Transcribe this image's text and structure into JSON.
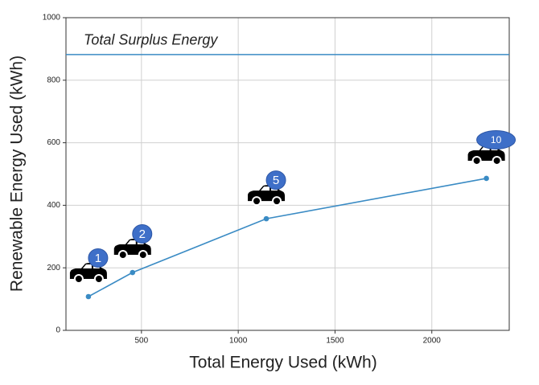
{
  "chart_data": {
    "type": "line",
    "xlabel": "Total Energy Used (kWh)",
    "ylabel": "Renewable Energy Used (kWh)",
    "x": [
      226,
      454,
      1145,
      2282
    ],
    "series": [
      {
        "color": "#3a8bc4",
        "values": [
          108,
          185,
          357,
          486
        ]
      }
    ],
    "point_labels": [
      "1",
      "2",
      "5",
      "10"
    ],
    "hline": {
      "value": 882,
      "label": "Total Surplus Energy",
      "color": "#3a8bc4"
    },
    "xlim": [
      110,
      2400
    ],
    "ylim": [
      0,
      1000
    ],
    "xticks": [
      500,
      1000,
      1500,
      2000
    ],
    "yticks": [
      0,
      200,
      400,
      600,
      800,
      1000
    ],
    "grid": true
  }
}
